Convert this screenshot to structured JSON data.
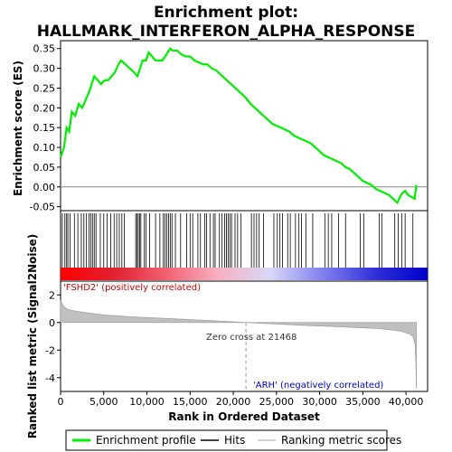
{
  "chart_data": {
    "type": "line",
    "title_line1": "Enrichment plot:",
    "title_line2": "HALLMARK_INTERFERON_ALPHA_RESPONSE",
    "es_panel": {
      "ylabel": "Enrichment score (ES)",
      "ylim": [
        -0.06,
        0.37
      ],
      "yticks": [
        "0.35",
        "0.30",
        "0.25",
        "0.20",
        "0.15",
        "0.10",
        "0.05",
        "0.00",
        "-0.05"
      ],
      "ytick_values": [
        0.35,
        0.3,
        0.25,
        0.2,
        0.15,
        0.1,
        0.05,
        0.0,
        -0.05
      ],
      "line_color": "#00ee00",
      "series": [
        {
          "name": "Enrichment profile",
          "x": [
            0,
            400,
            700,
            1000,
            1300,
            1700,
            2100,
            2500,
            2900,
            3300,
            3600,
            3900,
            4300,
            4700,
            5100,
            5500,
            5900,
            6300,
            6700,
            7000,
            7500,
            8000,
            8500,
            8900,
            9200,
            9500,
            9900,
            10200,
            10600,
            11000,
            11400,
            11800,
            12100,
            12400,
            12700,
            13000,
            13500,
            14000,
            14500,
            15000,
            15500,
            16000,
            16500,
            17000,
            17500,
            18000,
            18500,
            19000,
            19500,
            20000,
            20500,
            21000,
            21468,
            22000,
            22500,
            23000,
            23500,
            24000,
            24500,
            25000,
            25500,
            26000,
            26500,
            27000,
            27500,
            28000,
            28500,
            29000,
            29500,
            30000,
            30500,
            31000,
            31500,
            32000,
            32500,
            33000,
            33500,
            34000,
            34500,
            35000,
            35500,
            36000,
            36500,
            37000,
            37500,
            38000,
            38500,
            39000,
            39300,
            39600,
            39900,
            40200,
            40600,
            41000,
            41200
          ],
          "y": [
            0.075,
            0.1,
            0.15,
            0.14,
            0.19,
            0.18,
            0.21,
            0.2,
            0.22,
            0.24,
            0.26,
            0.28,
            0.27,
            0.26,
            0.27,
            0.27,
            0.28,
            0.29,
            0.31,
            0.32,
            0.31,
            0.3,
            0.29,
            0.28,
            0.3,
            0.32,
            0.32,
            0.34,
            0.33,
            0.32,
            0.32,
            0.32,
            0.33,
            0.34,
            0.35,
            0.345,
            0.345,
            0.335,
            0.33,
            0.33,
            0.32,
            0.315,
            0.31,
            0.31,
            0.3,
            0.295,
            0.285,
            0.275,
            0.265,
            0.255,
            0.245,
            0.235,
            0.225,
            0.21,
            0.2,
            0.19,
            0.18,
            0.17,
            0.16,
            0.155,
            0.15,
            0.145,
            0.14,
            0.13,
            0.125,
            0.12,
            0.115,
            0.11,
            0.1,
            0.09,
            0.08,
            0.075,
            0.07,
            0.065,
            0.06,
            0.05,
            0.045,
            0.035,
            0.025,
            0.015,
            0.01,
            0.005,
            -0.005,
            -0.01,
            -0.015,
            -0.02,
            -0.03,
            -0.04,
            -0.025,
            -0.015,
            -0.01,
            -0.02,
            -0.025,
            -0.03,
            0.005
          ]
        }
      ]
    },
    "hits": {
      "n_total": 41200,
      "positions": [
        200,
        500,
        700,
        850,
        1100,
        1600,
        2000,
        2400,
        2700,
        3000,
        3300,
        3500,
        3700,
        3900,
        4100,
        4600,
        5000,
        5400,
        5800,
        6200,
        6500,
        6800,
        7100,
        7400,
        8700,
        8850,
        9000,
        9150,
        9300,
        9700,
        9900,
        10300,
        11000,
        11500,
        11900,
        12100,
        12300,
        12500,
        12700,
        12900,
        13300,
        13900,
        14600,
        15000,
        15300,
        15900,
        16200,
        16700,
        16900,
        17300,
        17700,
        17900,
        18400,
        18700,
        19000,
        19200,
        19400,
        19600,
        19800,
        20200,
        20500,
        20900,
        22100,
        22400,
        22700,
        23000,
        23500,
        24700,
        25100,
        25400,
        25700,
        26300,
        26600,
        27200,
        27600,
        27900,
        28400,
        29200,
        30600,
        31000,
        31400,
        32200,
        33000,
        34700,
        35100,
        36900,
        37200,
        38700,
        39100,
        39500,
        39900,
        40800
      ]
    },
    "heat_bar": {
      "colors": [
        "#ff0000",
        "#e02030",
        "#f06070",
        "#f8b0c0",
        "#d8d8f8",
        "#8080f0",
        "#3030d8",
        "#0000cc"
      ]
    },
    "metric_panel": {
      "ylabel": "Ranked list metric (Signal2Noise)",
      "ylim": [
        -5.0,
        3.0
      ],
      "yticks": [
        "2",
        "0",
        "-2",
        "-4"
      ],
      "ytick_values": [
        2,
        0,
        -2,
        -4
      ],
      "fill_color": "#c0c0c0",
      "x": [
        0,
        300,
        800,
        1500,
        3000,
        5000,
        8000,
        12000,
        16000,
        19000,
        21468,
        24000,
        28000,
        32000,
        35000,
        37000,
        38500,
        39500,
        40300,
        40800,
        41050,
        41150,
        41200
      ],
      "y": [
        1.6,
        1.2,
        0.95,
        0.85,
        0.7,
        0.55,
        0.42,
        0.3,
        0.18,
        0.08,
        0.0,
        -0.08,
        -0.2,
        -0.3,
        -0.38,
        -0.45,
        -0.55,
        -0.65,
        -0.8,
        -1.0,
        -1.6,
        -3.0,
        -4.8
      ],
      "label_pos": "'FSHD2' (positively correlated)",
      "label_neg": "'ARH' (negatively correlated)",
      "zero_cross_text": "Zero cross at 21468",
      "zero_cross": 21468
    },
    "xaxis": {
      "xlabel": "Rank in Ordered Dataset",
      "xlim": [
        0,
        42500
      ],
      "xticks": [
        "0",
        "5,000",
        "10,000",
        "15,000",
        "20,000",
        "25,000",
        "30,000",
        "35,000",
        "40,000"
      ],
      "xtick_values": [
        0,
        5000,
        10000,
        15000,
        20000,
        25000,
        30000,
        35000,
        40000
      ]
    },
    "legend": {
      "items": [
        {
          "label": "Enrichment profile",
          "color": "#00ee00"
        },
        {
          "label": "Hits",
          "color": "#000000"
        },
        {
          "label": "Ranking metric scores",
          "color": "#c0c0c0"
        }
      ]
    }
  }
}
